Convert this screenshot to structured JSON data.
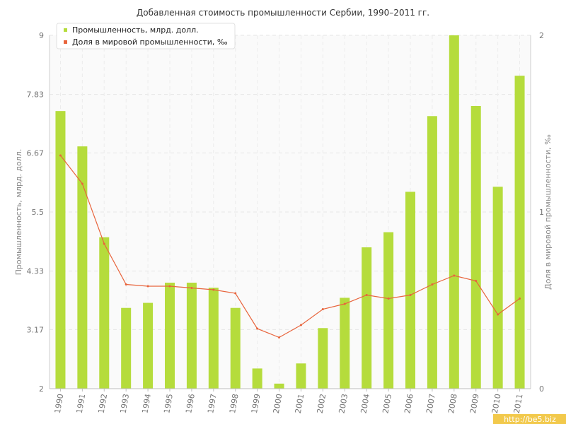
{
  "chart_data": {
    "type": "bar",
    "title": "Добавленная стоимость промышленности Сербии, 1990–2011 гг.",
    "categories": [
      "1990",
      "1991",
      "1992",
      "1993",
      "1994",
      "1995",
      "1996",
      "1997",
      "1998",
      "1999",
      "2000",
      "2001",
      "2002",
      "2003",
      "2004",
      "2005",
      "2006",
      "2007",
      "2008",
      "2009",
      "2010",
      "2011"
    ],
    "series": [
      {
        "name": "Промышленность, млрд. долл.",
        "type": "bar",
        "axis": "left",
        "color": "#b5dc3c",
        "values": [
          7.5,
          6.8,
          5.0,
          3.6,
          3.7,
          4.1,
          4.1,
          4.0,
          3.6,
          2.4,
          2.1,
          2.5,
          3.2,
          3.8,
          4.8,
          5.1,
          5.9,
          7.4,
          9.0,
          7.6,
          6.0,
          8.2
        ]
      },
      {
        "name": "Доля в мировой промышленности, ‰",
        "type": "line",
        "axis": "right",
        "color": "#e8643c",
        "values": [
          1.32,
          1.16,
          0.82,
          0.59,
          0.58,
          0.58,
          0.57,
          0.56,
          0.54,
          0.34,
          0.29,
          0.36,
          0.45,
          0.48,
          0.53,
          0.51,
          0.53,
          0.59,
          0.64,
          0.61,
          0.42,
          0.51
        ]
      }
    ],
    "ylabel": "Промышленность, млрд. долл.",
    "ylabel_right": "Доля в мировой промышленности, ‰",
    "ylim": [
      2,
      9
    ],
    "yticks": [
      "2",
      "3.17",
      "4.33",
      "5.5",
      "6.67",
      "7.83",
      "9"
    ],
    "ylim_right": [
      0,
      2
    ],
    "yticks_right": [
      "0",
      "1",
      "2"
    ],
    "grid": true,
    "legend_position": "top-left",
    "watermark": "http://be5.biz"
  }
}
